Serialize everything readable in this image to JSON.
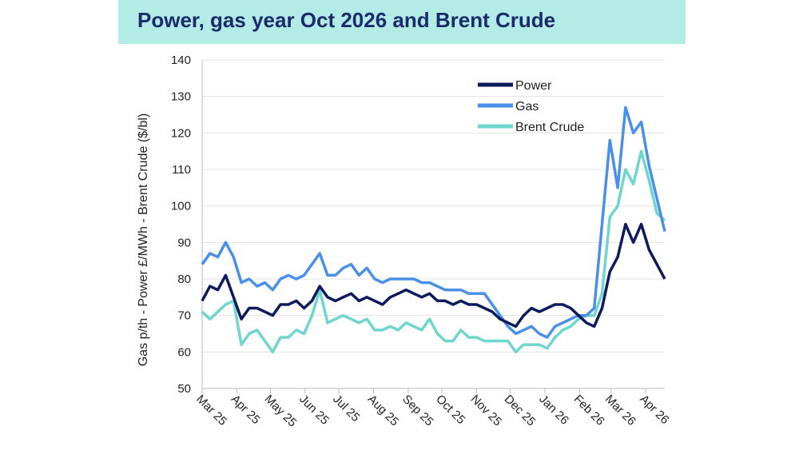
{
  "chart_data": {
    "type": "line",
    "title": "Power, gas year Oct 2026 and Brent Crude",
    "xlabel": "",
    "ylabel": "Gas p/th - Power £/MWh - Brent Crude ($/bl)",
    "ylim": [
      50,
      140
    ],
    "yticks": [
      50,
      60,
      70,
      80,
      90,
      100,
      110,
      120,
      130,
      140
    ],
    "xlim": [
      "2025-03-01",
      "2026-04-18"
    ],
    "xticks": [
      {
        "date": "2025-03-01",
        "label": "Mar 25"
      },
      {
        "date": "2025-04-01",
        "label": "Apr 25"
      },
      {
        "date": "2025-05-01",
        "label": "May 25"
      },
      {
        "date": "2025-06-01",
        "label": "Jun 25"
      },
      {
        "date": "2025-07-01",
        "label": "Jul 25"
      },
      {
        "date": "2025-08-01",
        "label": "Aug 25"
      },
      {
        "date": "2025-09-01",
        "label": "Sep 25"
      },
      {
        "date": "2025-10-01",
        "label": "Oct 25"
      },
      {
        "date": "2025-11-01",
        "label": "Nov 25"
      },
      {
        "date": "2025-12-01",
        "label": "Dec 25"
      },
      {
        "date": "2026-01-01",
        "label": "Jan 26"
      },
      {
        "date": "2026-02-01",
        "label": "Feb 26"
      },
      {
        "date": "2026-03-01",
        "label": "Mar 26"
      },
      {
        "date": "2026-04-01",
        "label": "Apr 26"
      }
    ],
    "grid": "horizontal",
    "legend": "top-right",
    "x": [
      "2025-03-01",
      "2025-03-08",
      "2025-03-15",
      "2025-03-22",
      "2025-03-29",
      "2025-04-05",
      "2025-04-12",
      "2025-04-19",
      "2025-04-26",
      "2025-05-03",
      "2025-05-10",
      "2025-05-17",
      "2025-05-24",
      "2025-05-31",
      "2025-06-07",
      "2025-06-14",
      "2025-06-21",
      "2025-06-28",
      "2025-07-05",
      "2025-07-12",
      "2025-07-19",
      "2025-07-26",
      "2025-08-02",
      "2025-08-09",
      "2025-08-16",
      "2025-08-23",
      "2025-08-30",
      "2025-09-06",
      "2025-09-13",
      "2025-09-20",
      "2025-09-27",
      "2025-10-04",
      "2025-10-11",
      "2025-10-18",
      "2025-10-25",
      "2025-11-01",
      "2025-11-08",
      "2025-11-15",
      "2025-11-22",
      "2025-11-29",
      "2025-12-06",
      "2025-12-13",
      "2025-12-20",
      "2025-12-27",
      "2026-01-03",
      "2026-01-10",
      "2026-01-17",
      "2026-01-24",
      "2026-01-31",
      "2026-02-07",
      "2026-02-14",
      "2026-02-21",
      "2026-02-28",
      "2026-03-07",
      "2026-03-14",
      "2026-03-21",
      "2026-03-28",
      "2026-04-04",
      "2026-04-11",
      "2026-04-18"
    ],
    "series": [
      {
        "name": "Power",
        "color": "#0d1b5e",
        "values": [
          74,
          78,
          77,
          81,
          75,
          69,
          72,
          72,
          71,
          70,
          73,
          73,
          74,
          72,
          74,
          78,
          75,
          74,
          75,
          76,
          74,
          75,
          74,
          73,
          75,
          76,
          77,
          76,
          75,
          76,
          74,
          74,
          73,
          74,
          73,
          73,
          72,
          71,
          69,
          68,
          67,
          70,
          72,
          71,
          72,
          73,
          73,
          72,
          70,
          68,
          67,
          72,
          82,
          86,
          95,
          90,
          95,
          88,
          84,
          80
        ]
      },
      {
        "name": "Gas",
        "color": "#4a8fe8",
        "values": [
          84,
          87,
          86,
          90,
          86,
          79,
          80,
          78,
          79,
          77,
          80,
          81,
          80,
          81,
          84,
          87,
          81,
          81,
          83,
          84,
          81,
          83,
          80,
          79,
          80,
          80,
          80,
          80,
          79,
          79,
          78,
          77,
          77,
          77,
          76,
          76,
          76,
          73,
          70,
          67,
          65,
          66,
          67,
          65,
          64,
          67,
          68,
          69,
          70,
          70,
          72,
          95,
          118,
          105,
          127,
          120,
          123,
          111,
          102,
          93
        ]
      },
      {
        "name": "Brent Crude",
        "color": "#6ed6cc",
        "values": [
          71,
          69,
          71,
          73,
          74,
          62,
          65,
          66,
          63,
          60,
          64,
          64,
          66,
          65,
          70,
          77,
          68,
          69,
          70,
          69,
          68,
          69,
          66,
          66,
          67,
          66,
          68,
          67,
          66,
          69,
          65,
          63,
          63,
          66,
          64,
          64,
          63,
          63,
          63,
          63,
          60,
          62,
          62,
          62,
          61,
          64,
          66,
          67,
          69,
          70,
          70,
          76,
          97,
          100,
          110,
          106,
          115,
          107,
          98,
          96
        ]
      }
    ]
  }
}
